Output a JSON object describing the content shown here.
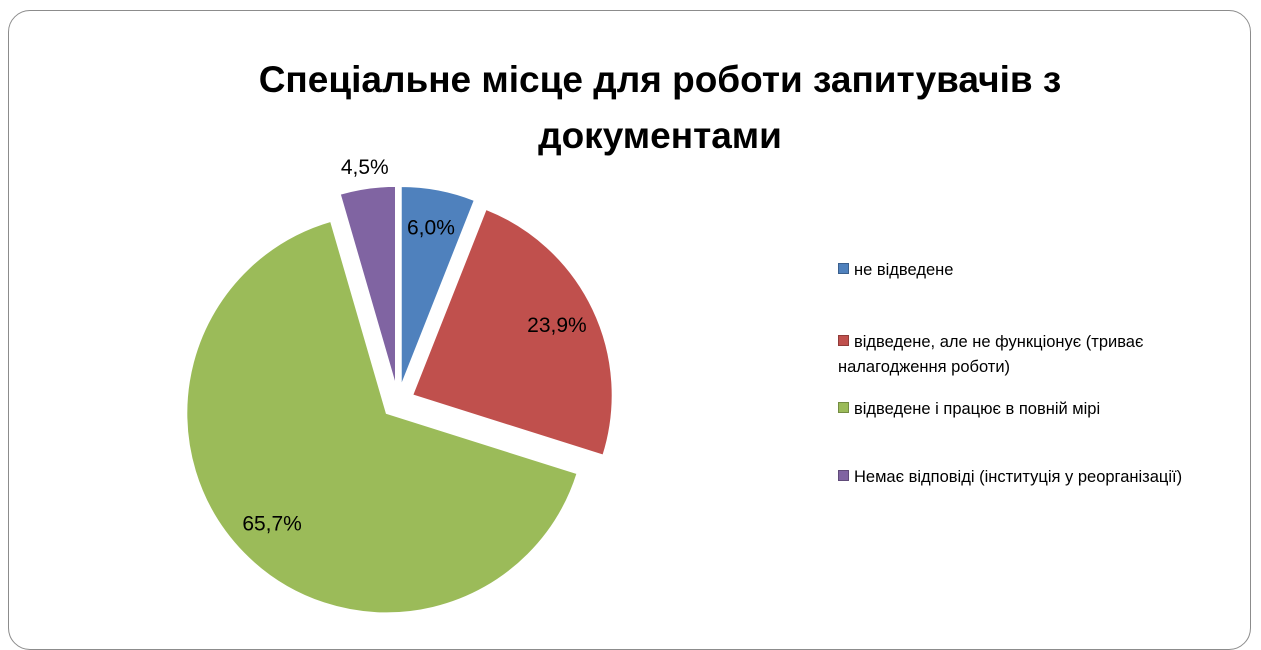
{
  "chart_data": {
    "type": "pie",
    "title": "Спеціальне місце для роботи запитувачів з документами",
    "categories": [
      "не відведене",
      "відведене, але не функціонує (триває налагодження роботи)",
      "відведене і працює в повній мірі",
      "Немає відповіді (інституція у реорганізації)"
    ],
    "values": [
      6.0,
      23.9,
      65.7,
      4.5
    ],
    "value_labels": [
      "6,0%",
      "23,9%",
      "65,7%",
      "4,5%"
    ],
    "colors": [
      "#4f81bd",
      "#c0504d",
      "#9bbb59",
      "#8064a2"
    ],
    "legend": "right"
  }
}
